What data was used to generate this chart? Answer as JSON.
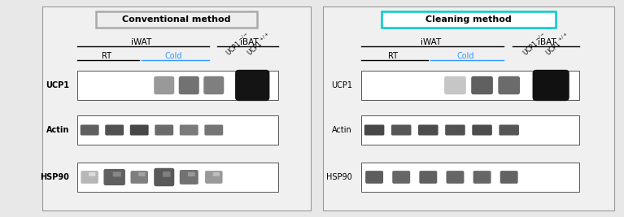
{
  "bg_color": "#e8e8e8",
  "fig_width": 7.67,
  "fig_height": 2.67,
  "left_panel": {
    "title": "Conventional method",
    "title_box_color": "#eeeeee",
    "title_border_color": "#aaaaaa",
    "iwat_label": "iWAT",
    "ibat_label": "iBAT",
    "rt_label": "RT",
    "cold_label": "Cold",
    "cold_color": "#3399ff",
    "ucp1_label": "UCP1",
    "actin_label": "Actin",
    "hsp90_label": "HSP90",
    "ucp1_bold": true,
    "actin_bold": true,
    "hsp90_bold": true
  },
  "right_panel": {
    "title": "Cleaning method",
    "title_box_color": "#ffffff",
    "title_border_color": "#00cccc",
    "iwat_label": "iWAT",
    "ibat_label": "iBAT",
    "rt_label": "RT",
    "cold_label": "Cold",
    "cold_color": "#3399ff",
    "ucp1_label": "UCP1",
    "actin_label": "Actin",
    "hsp90_label": "HSP90",
    "ucp1_bold": false,
    "actin_bold": false,
    "hsp90_bold": false
  }
}
